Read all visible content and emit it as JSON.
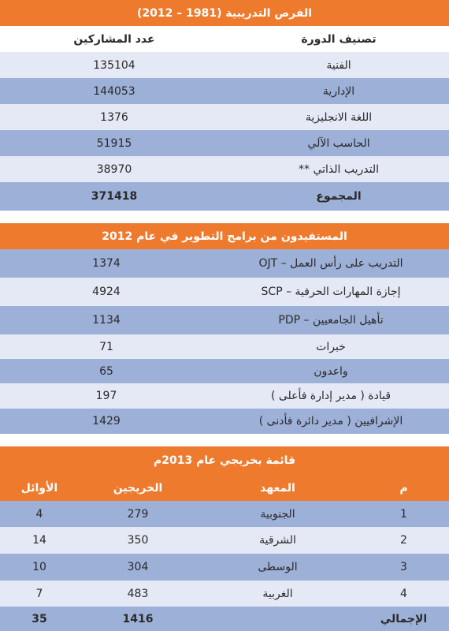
{
  "table1": {
    "title": "الفرص التدريبية (1981 – 2012)",
    "headers": {
      "category": "تصنيف الدورة",
      "participants": "عدد المشاركين"
    },
    "rows": [
      {
        "category": "الفنية",
        "value": "135104"
      },
      {
        "category": "الإدارية",
        "value": "144053"
      },
      {
        "category": "اللغة الانجليزية",
        "value": "1376"
      },
      {
        "category": "الحاسب الآلي",
        "value": "51915"
      },
      {
        "category": "التدريب الذاتي **",
        "value": "38970"
      }
    ],
    "total": {
      "label": "المجموع",
      "value": "371418"
    }
  },
  "table2": {
    "title": "المستفيدون من برامج التطوير في عام 2012",
    "rows": [
      {
        "label": "التدريب على رأس العمل – OJT",
        "value": "1374"
      },
      {
        "label": "إجازة المهارات الحرفية – SCP",
        "value": "4924"
      },
      {
        "label": "تأهيل الجامعيين – PDP",
        "value": "1134"
      },
      {
        "label": "خبرات",
        "value": "71"
      },
      {
        "label": "واعدون",
        "value": "65"
      },
      {
        "label": "قيادة ( مدير إدارة فأعلى )",
        "value": "197"
      },
      {
        "label": "الإشرافيين ( مدير دائرة فأدنى )",
        "value": "1429"
      }
    ]
  },
  "table3": {
    "title": "قائمة بخريجي عام 2013م",
    "headers": {
      "num": "م",
      "institute": "المعهد",
      "graduates": "الخريجين",
      "top": "الأوائل"
    },
    "rows": [
      {
        "num": "1",
        "institute": "الجنوبية",
        "graduates": "279",
        "top": "4"
      },
      {
        "num": "2",
        "institute": "الشرقية",
        "graduates": "350",
        "top": "14"
      },
      {
        "num": "3",
        "institute": "الوسطى",
        "graduates": "304",
        "top": "10"
      },
      {
        "num": "4",
        "institute": "الغربية",
        "graduates": "483",
        "top": "7"
      }
    ],
    "total": {
      "label": "الإجمالي",
      "graduates": "1416",
      "top": "35"
    }
  }
}
